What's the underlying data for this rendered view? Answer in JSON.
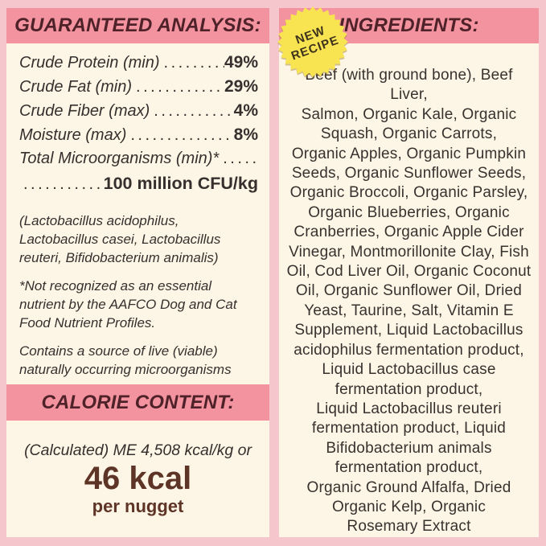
{
  "colors": {
    "background_pink": "#f5c7cd",
    "band_pink": "#f2939f",
    "panel_cream": "#fdf5e6",
    "heading_maroon": "#4f2229",
    "body_text": "#35302d",
    "calorie_brown": "#5e3426",
    "badge_yellow": "#f8e351",
    "badge_text": "#3d321c"
  },
  "guaranteed_analysis": {
    "title": "GUARANTEED ANALYSIS:",
    "rows": [
      {
        "label": "Crude Protein (min)",
        "dots": ".............",
        "value": "49%"
      },
      {
        "label": "Crude Fat (min)",
        "dots": "..................",
        "value": "29%"
      },
      {
        "label": "Crude Fiber (max)",
        "dots": "...............",
        "value": "4%"
      },
      {
        "label": "Moisture (max)",
        "dots": "..................",
        "value": "8%"
      }
    ],
    "micro_label": "Total Microorganisms (min)*",
    "micro_dots": "..........",
    "cfu_dots": ".............",
    "cfu_value": "100 million CFU/kg",
    "note_organisms": "(Lactobacillus acidophilus, Lactobacillus casei, Lactobacillus reuteri, Bifidobacterium animalis)",
    "note_aafco": "*Not recognized as an essential nutrient by the AAFCO Dog and Cat Food Nutrient Profiles.",
    "note_live": "Contains a source of live (viable) naturally occurring microorganisms"
  },
  "calorie_content": {
    "title": "CALORIE CONTENT:",
    "calculated_line": "(Calculated) ME 4,508 kcal/kg or",
    "kcal_value": "46 kcal",
    "kcal_unit": "per nugget"
  },
  "ingredients": {
    "title": "INGREDIENTS:",
    "badge": {
      "line1": "NEW",
      "line2": "RECIPE"
    },
    "full_text": "Beef (with ground bone), Beef Liver, Salmon, Organic Kale, Organic Squash, Organic Carrots, Organic Apples, Organic Pumpkin Seeds, Organic Sunflower Seeds, Organic Broccoli, Organic Parsley, Organic Blueberries, Organic Cranberries, Organic Apple Cider Vinegar, Montmorillonite Clay, Fish Oil, Cod Liver Oil, Organic Coconut Oil, Organic Sunflower Oil, Dried Yeast, Taurine, Salt, Vitamin E Supplement, Liquid Lactobacillus acidophilus fermentation product, Liquid Lactobacillus case fermentation product, Liquid Lactobacillus reuteri fermentation product, Liquid Bifidobacterium animals fermentation product, Organic Ground Alfalfa, Dried Organic Kelp, Organic Rosemary Extract",
    "lines": [
      "Beef (with ground bone), Beef Liver,",
      "Salmon, Organic Kale, Organic",
      "Squash, Organic Carrots,",
      "Organic Apples, Organic Pumpkin",
      "Seeds, Organic Sunflower Seeds,",
      "Organic Broccoli, Organic Parsley,",
      "Organic Blueberries, Organic",
      "Cranberries, Organic Apple Cider",
      "Vinegar, Montmorillonite Clay, Fish",
      "Oil, Cod Liver Oil, Organic Coconut",
      "Oil, Organic Sunflower Oil, Dried",
      "Yeast, Taurine, Salt, Vitamin E",
      "Supplement, Liquid Lactobacillus",
      "acidophilus fermentation product,",
      "Liquid Lactobacillus case",
      "fermentation product,",
      "Liquid Lactobacillus reuteri",
      "fermentation product, Liquid",
      "Bifidobacterium animals",
      "fermentation product,",
      "Organic Ground Alfalfa, Dried",
      "Organic Kelp, Organic",
      "Rosemary Extract"
    ]
  }
}
